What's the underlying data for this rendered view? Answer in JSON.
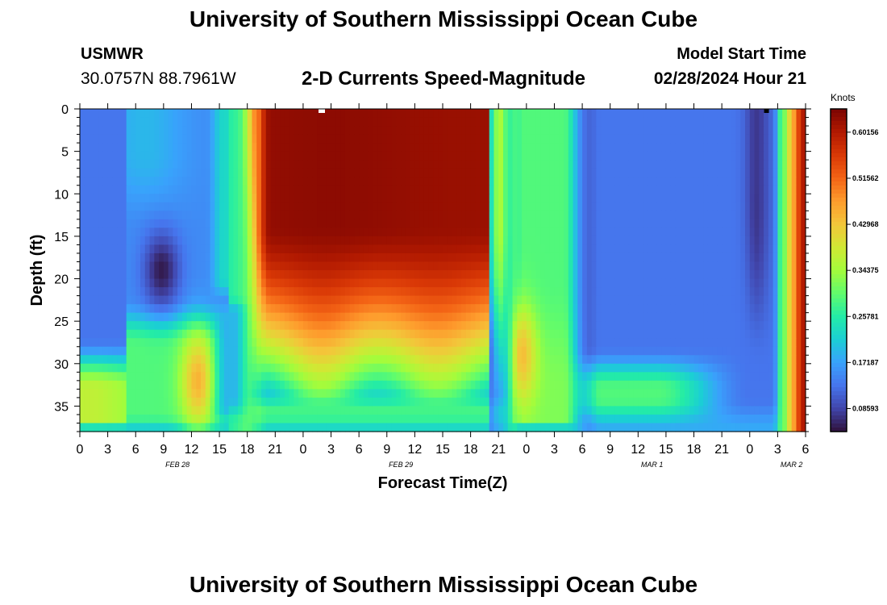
{
  "header": {
    "title": "University of Southern Mississippi Ocean Cube",
    "station_id": "USMWR",
    "coordinates": "30.0757N  88.7961W",
    "subtitle": "2-D Currents Speed-Magnitude",
    "model_start_label": "Model Start Time",
    "model_start_value": "02/28/2024 Hour 21"
  },
  "footer": {
    "title": "University of Southern Mississippi Ocean Cube"
  },
  "chart_data": {
    "type": "heatmap",
    "title": "2-D Currents Speed-Magnitude",
    "xlabel": "Forecast Time(Z)",
    "ylabel": "Depth (ft)",
    "x_tick_labels": [
      "0",
      "3",
      "6",
      "9",
      "12",
      "15",
      "18",
      "21",
      "0",
      "3",
      "6",
      "9",
      "12",
      "15",
      "18",
      "21",
      "0",
      "3",
      "6",
      "9",
      "12",
      "15",
      "18",
      "21",
      "0",
      "3",
      "6"
    ],
    "x_date_labels": [
      {
        "label": "FEB 28",
        "tick_index": 3.5
      },
      {
        "label": "FEB 29",
        "tick_index": 11.5
      },
      {
        "label": "MAR 1",
        "tick_index": 20.5
      },
      {
        "label": "MAR 2",
        "tick_index": 25.5
      }
    ],
    "x_range_hours": [
      0,
      78
    ],
    "y_ticks": [
      0,
      5,
      10,
      15,
      20,
      25,
      30,
      35
    ],
    "y_range_ft": [
      0,
      38
    ],
    "colorbar": {
      "label": "Knots",
      "ticks": [
        "0.08593",
        "0.17187",
        "0.25781",
        "0.34375",
        "0.42968",
        "0.51562",
        "0.60156"
      ],
      "range": [
        0.043,
        0.645
      ]
    },
    "colors": {
      "c0": "#30123b",
      "c1": "#4145ab",
      "c2": "#4675ed",
      "c3": "#39a2fc",
      "c4": "#1bcfd4",
      "c5": "#24eca6",
      "c6": "#61fc6c",
      "c7": "#a4fc3b",
      "c8": "#d1e834",
      "c9": "#f3c63a",
      "c10": "#fe9b2d",
      "c11": "#f36315",
      "c12": "#d93806",
      "c13": "#b11901",
      "c14": "#7a0402"
    },
    "features": [
      {
        "hour_start": 0,
        "hour_end": 6,
        "depth_range": [
          0,
          27
        ],
        "speed": 0.14,
        "pattern": "blue background upper left"
      },
      {
        "hour_center": 8.8,
        "depth_center": 19,
        "speed": 0.05,
        "pattern": "dark eddy"
      },
      {
        "hour_center": 12.7,
        "depth_center": 32,
        "speed": 0.45,
        "pattern": "orange near-bottom patch"
      },
      {
        "hour_start": 19,
        "hour_end": 46,
        "depth_range": [
          0,
          33
        ],
        "speed": 0.62,
        "pattern": "strong current, max ~0.63 near surface"
      },
      {
        "hour_center": 43.5,
        "depth_center": 28,
        "speed": 0.06,
        "pattern": "dark vertical band"
      },
      {
        "hour_center": 47.5,
        "depth_center": 29,
        "speed": 0.44,
        "pattern": "orange patch"
      },
      {
        "hour_start": 52,
        "hour_end": 75,
        "depth_range": [
          0,
          30
        ],
        "speed": 0.13,
        "pattern": "blue weak current"
      },
      {
        "hour_center": 72.8,
        "depth_center": 5,
        "speed": 0.04,
        "pattern": "dark band near surface"
      },
      {
        "hour_start": 76,
        "hour_end": 78,
        "depth_range": [
          0,
          38
        ],
        "speed": 0.6,
        "pattern": "strong current at end"
      }
    ]
  }
}
